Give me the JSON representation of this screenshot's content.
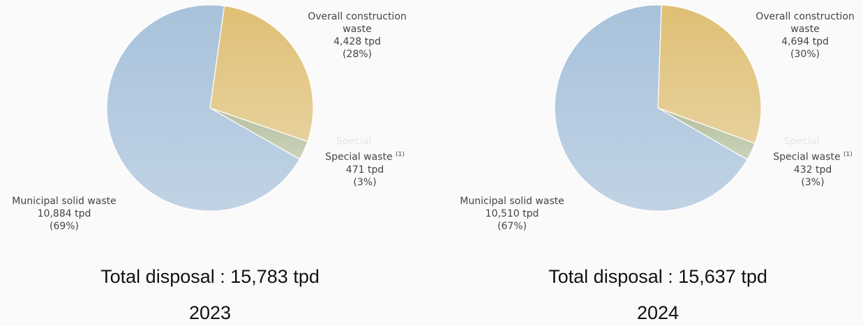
{
  "chart_data": [
    {
      "type": "pie",
      "categories": [
        "Municipal solid waste",
        "Overall construction waste",
        "Special waste"
      ],
      "values": [
        10884,
        4428,
        471
      ],
      "value_labels": [
        "10,884 tpd",
        "4,428 tpd",
        "471 tpd"
      ],
      "percentages": [
        69,
        28,
        3
      ],
      "percentage_labels": [
        "(69%)",
        "(28%)",
        "(3%)"
      ],
      "footnote_marker": "(1)",
      "annotation": "Special",
      "colors": [
        "#a8c2db",
        "#dfbf74",
        "#b6c09f"
      ],
      "total": 15783,
      "total_label": "Total disposal : 15,783 tpd",
      "caption": "2023"
    },
    {
      "type": "pie",
      "categories": [
        "Municipal solid waste",
        "Overall construction waste",
        "Special waste"
      ],
      "values": [
        10510,
        4694,
        432
      ],
      "value_labels": [
        "10,510 tpd",
        "4,694 tpd",
        "432 tpd"
      ],
      "percentages": [
        67,
        30,
        3
      ],
      "percentage_labels": [
        "(67%)",
        "(30%)",
        "(3%)"
      ],
      "footnote_marker": "(1)",
      "annotation": "Special",
      "colors": [
        "#a8c2db",
        "#dfbf74",
        "#b6c09f"
      ],
      "total": 15637,
      "total_label": "Total disposal : 15,637 tpd",
      "caption": "2024"
    }
  ]
}
